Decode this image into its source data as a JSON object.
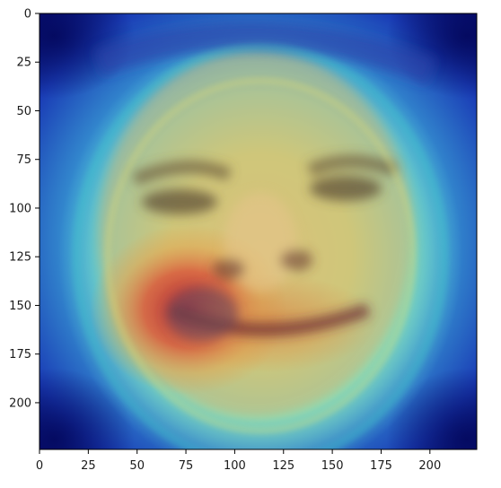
{
  "figure": {
    "image_description": "heatmap-overlay-on-face",
    "xlim": [
      0,
      224
    ],
    "ylim": [
      224,
      0
    ],
    "x_ticks": [
      {
        "value": 0,
        "label": "0"
      },
      {
        "value": 25,
        "label": "25"
      },
      {
        "value": 50,
        "label": "50"
      },
      {
        "value": 75,
        "label": "75"
      },
      {
        "value": 100,
        "label": "100"
      },
      {
        "value": 125,
        "label": "125"
      },
      {
        "value": 150,
        "label": "150"
      },
      {
        "value": 175,
        "label": "175"
      },
      {
        "value": 200,
        "label": "200"
      }
    ],
    "y_ticks": [
      {
        "value": 0,
        "label": "0"
      },
      {
        "value": 25,
        "label": "25"
      },
      {
        "value": 50,
        "label": "50"
      },
      {
        "value": 75,
        "label": "75"
      },
      {
        "value": 100,
        "label": "100"
      },
      {
        "value": 125,
        "label": "125"
      },
      {
        "value": 150,
        "label": "150"
      },
      {
        "value": 175,
        "label": "175"
      },
      {
        "value": 200,
        "label": "200"
      }
    ],
    "colors": {
      "background": "#ffffff",
      "axis": "#000000",
      "tick_label": "#1a1a1a",
      "cold": "#08127a",
      "cool": "#2f63d8",
      "mid": "#58d0c9",
      "warm": "#d8e06a",
      "hot": "#d95a3c"
    }
  }
}
